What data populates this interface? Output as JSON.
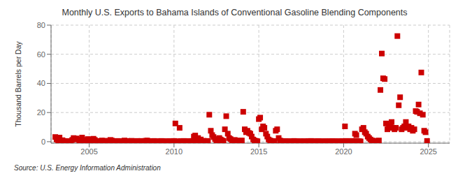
{
  "chart_data": {
    "type": "scatter",
    "title": "Monthly U.S. Exports to Bahama Islands of Conventional Gasoline Blending Components",
    "ylabel": "Thousand Barrels per Day",
    "annotations": [
      "Source: U.S. Energy Information Administration"
    ],
    "xlim": [
      2002.75,
      2026.25
    ],
    "ylim": [
      -1,
      80
    ],
    "xticks": [
      2005,
      2010,
      2015,
      2020,
      2025
    ],
    "yticks": [
      0,
      20,
      40,
      60,
      80
    ],
    "grid": true,
    "color": "#cc0000",
    "marker": "square",
    "x": [
      2003.0,
      2003.08,
      2003.17,
      2003.25,
      2003.33,
      2003.42,
      2003.5,
      2003.58,
      2003.67,
      2003.75,
      2003.83,
      2003.92,
      2004.0,
      2004.08,
      2004.17,
      2004.25,
      2004.33,
      2004.42,
      2004.5,
      2004.58,
      2004.67,
      2004.75,
      2004.83,
      2004.92,
      2005.0,
      2005.08,
      2005.17,
      2005.25,
      2005.33,
      2005.42,
      2005.5,
      2005.58,
      2005.67,
      2005.75,
      2005.83,
      2005.92,
      2006.0,
      2006.08,
      2006.17,
      2006.25,
      2006.33,
      2006.42,
      2006.5,
      2006.58,
      2006.67,
      2006.75,
      2006.83,
      2006.92,
      2007.0,
      2007.08,
      2007.17,
      2007.25,
      2007.33,
      2007.42,
      2007.5,
      2007.58,
      2007.67,
      2007.75,
      2007.83,
      2007.92,
      2008.0,
      2008.08,
      2008.17,
      2008.25,
      2008.33,
      2008.42,
      2008.5,
      2008.58,
      2008.67,
      2008.75,
      2008.83,
      2008.92,
      2009.0,
      2009.08,
      2009.17,
      2009.25,
      2009.33,
      2009.42,
      2009.5,
      2009.58,
      2009.67,
      2009.75,
      2009.83,
      2009.92,
      2010.0,
      2010.08,
      2010.17,
      2010.25,
      2010.33,
      2010.42,
      2010.5,
      2010.58,
      2010.67,
      2010.75,
      2010.83,
      2010.92,
      2011.0,
      2011.08,
      2011.17,
      2011.25,
      2011.33,
      2011.42,
      2011.5,
      2011.58,
      2011.67,
      2011.75,
      2011.83,
      2011.92,
      2012.0,
      2012.08,
      2012.17,
      2012.25,
      2012.33,
      2012.42,
      2012.5,
      2012.58,
      2012.67,
      2012.75,
      2012.83,
      2012.92,
      2013.0,
      2013.08,
      2013.17,
      2013.25,
      2013.33,
      2013.42,
      2013.5,
      2013.58,
      2013.67,
      2013.75,
      2013.83,
      2013.92,
      2014.0,
      2014.08,
      2014.17,
      2014.25,
      2014.33,
      2014.42,
      2014.5,
      2014.58,
      2014.67,
      2014.75,
      2014.83,
      2014.92,
      2015.0,
      2015.08,
      2015.17,
      2015.25,
      2015.33,
      2015.42,
      2015.5,
      2015.58,
      2015.67,
      2015.75,
      2015.83,
      2015.92,
      2016.0,
      2016.08,
      2016.17,
      2016.25,
      2016.33,
      2016.42,
      2016.5,
      2016.58,
      2016.67,
      2016.75,
      2016.83,
      2016.92,
      2017.0,
      2017.08,
      2017.17,
      2017.25,
      2017.33,
      2017.42,
      2017.5,
      2017.58,
      2017.67,
      2017.75,
      2017.83,
      2017.92,
      2018.0,
      2018.08,
      2018.17,
      2018.25,
      2018.33,
      2018.42,
      2018.5,
      2018.58,
      2018.67,
      2018.75,
      2018.83,
      2018.92,
      2019.0,
      2019.08,
      2019.17,
      2019.25,
      2019.33,
      2019.42,
      2019.5,
      2019.58,
      2019.67,
      2019.75,
      2019.83,
      2019.92,
      2020.0,
      2020.08,
      2020.17,
      2020.25,
      2020.33,
      2020.42,
      2020.5,
      2020.58,
      2020.67,
      2020.75,
      2020.83,
      2020.92,
      2021.0,
      2021.08,
      2021.17,
      2021.25,
      2021.33,
      2021.42,
      2021.5,
      2021.58,
      2021.67,
      2021.75,
      2021.83,
      2021.92,
      2022.0,
      2022.08,
      2022.17,
      2022.25,
      2022.33,
      2022.42,
      2022.5,
      2022.58,
      2022.67,
      2022.75,
      2022.83,
      2022.92,
      2023.0,
      2023.08,
      2023.17,
      2023.25,
      2023.33,
      2023.42,
      2023.5,
      2023.58,
      2023.67,
      2023.75,
      2023.83,
      2023.92,
      2024.0,
      2024.08,
      2024.17,
      2024.25,
      2024.33,
      2024.42,
      2024.5,
      2024.58,
      2024.67,
      2024.75,
      2024.83,
      2024.92
    ],
    "values": [
      3.2,
      1.5,
      0.5,
      2.8,
      0.8,
      1.0,
      0.5,
      0.3,
      0.2,
      0.4,
      0.2,
      0.1,
      1.2,
      2.5,
      1.8,
      2.2,
      1.5,
      0.8,
      1.0,
      2.8,
      1.2,
      0.9,
      0.5,
      1.8,
      0.6,
      1.5,
      0.8,
      2.0,
      1.2,
      0.4,
      0.3,
      0.5,
      0.2,
      0.8,
      0.4,
      0.6,
      0.3,
      0.5,
      0.2,
      1.2,
      0.8,
      0.3,
      0.2,
      0.1,
      0.5,
      0.3,
      0.2,
      0.4,
      0.2,
      0.8,
      0.3,
      0.5,
      0.2,
      0.4,
      0.6,
      0.2,
      0.3,
      0.1,
      0.5,
      0.2,
      0.3,
      0.5,
      0.4,
      0.2,
      0.6,
      0.8,
      0.3,
      0.2,
      0.4,
      0.1,
      0.5,
      0.2,
      0.1,
      0.2,
      0.3,
      0.5,
      0.4,
      0.2,
      0.1,
      0.3,
      0.2,
      0.4,
      0.1,
      0.2,
      0.5,
      12.5,
      0.3,
      0.2,
      9.5,
      0.4,
      0.2,
      0.5,
      0.3,
      0.1,
      0.4,
      0.2,
      0.3,
      0.5,
      3.5,
      4.2,
      0.8,
      2.5,
      0.4,
      1.5,
      0.3,
      0.6,
      0.2,
      0.4,
      0.5,
      18.5,
      7.5,
      4.5,
      3.2,
      1.8,
      0.6,
      0.8,
      2.5,
      1.5,
      0.9,
      0.5,
      8.5,
      17.5,
      5.5,
      2.5,
      1.8,
      0.6,
      0.4,
      1.2,
      0.8,
      0.5,
      0.3,
      0.6,
      0.8,
      20.5,
      8.5,
      6.5,
      7.5,
      6.0,
      5.5,
      3.5,
      1.5,
      0.8,
      0.5,
      0.3,
      15.5,
      16.5,
      8.5,
      10.5,
      9.5,
      5.5,
      3.5,
      1.5,
      0.8,
      0.5,
      0.3,
      0.4,
      7.5,
      8.5,
      2.5,
      0.8,
      0.5,
      0.3,
      0.2,
      0.4,
      0.3,
      0.2,
      0.1,
      0.3,
      0.2,
      0.5,
      0.3,
      0.2,
      0.1,
      0.3,
      0.2,
      0.1,
      0.3,
      0.2,
      0.1,
      0.4,
      0.3,
      0.5,
      0.2,
      0.1,
      0.3,
      0.2,
      0.4,
      0.3,
      0.2,
      0.1,
      0.2,
      0.3,
      0.2,
      0.1,
      0.3,
      0.2,
      0.4,
      0.3,
      0.2,
      0.1,
      0.3,
      0.2,
      0.1,
      0.4,
      0.3,
      10.5,
      0.5,
      0.2,
      0.1,
      0.3,
      0.5,
      0.3,
      5.5,
      4.5,
      0.4,
      0.3,
      0.2,
      8.5,
      9.5,
      6.5,
      5.5,
      3.5,
      2.5,
      1.5,
      0.8,
      0.6,
      0.4,
      0.5,
      0.3,
      0.8,
      35.5,
      60.5,
      43.5,
      43.0,
      12.5,
      8.5,
      9.5,
      10.5,
      13.5,
      9.5,
      8.5,
      9.5,
      72.5,
      25.0,
      30.5,
      8.5,
      9.5,
      10.5,
      13.5,
      9.5,
      10.5,
      8.5,
      9.5,
      7.5,
      8.5,
      21.0,
      20.5,
      25.5,
      19.5,
      47.5,
      18.5,
      7.5,
      6.5,
      0.5
    ]
  }
}
